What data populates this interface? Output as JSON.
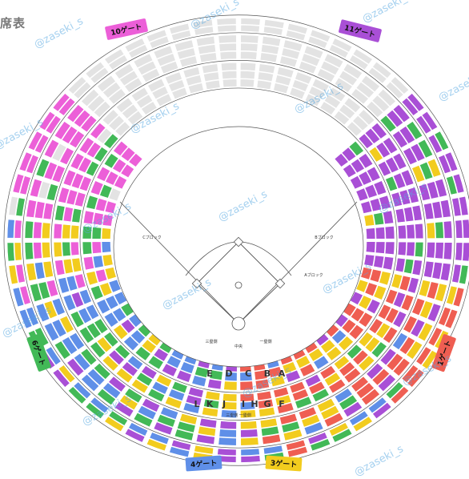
{
  "title": "席表",
  "watermark": "@zaseki_s",
  "colors": {
    "pink": "#ec5fd8",
    "purple": "#a94fd6",
    "yellow": "#f2cc1e",
    "blue": "#5f8fe8",
    "green": "#42b957",
    "red": "#ef5e52",
    "gray": "#e3e3e3",
    "line": "#555555"
  },
  "gates": {
    "gate10": "10ゲート",
    "gate11": "11ゲート",
    "gate6": "6ゲート",
    "gate1": "1ゲート",
    "gate4": "4ゲート",
    "gate3": "3ゲート"
  },
  "field": {
    "left_block": "Cブロック",
    "right_block": "Bブロック",
    "right_block_2": "Aブロック",
    "base_third": "三塁側",
    "base_first": "一塁側",
    "center": "中央",
    "home_rows": "三塁側 一塁側"
  },
  "block_letters": [
    "E",
    "D",
    "C",
    "B",
    "A",
    "L",
    "K",
    "J",
    "I",
    "H",
    "G",
    "F"
  ]
}
